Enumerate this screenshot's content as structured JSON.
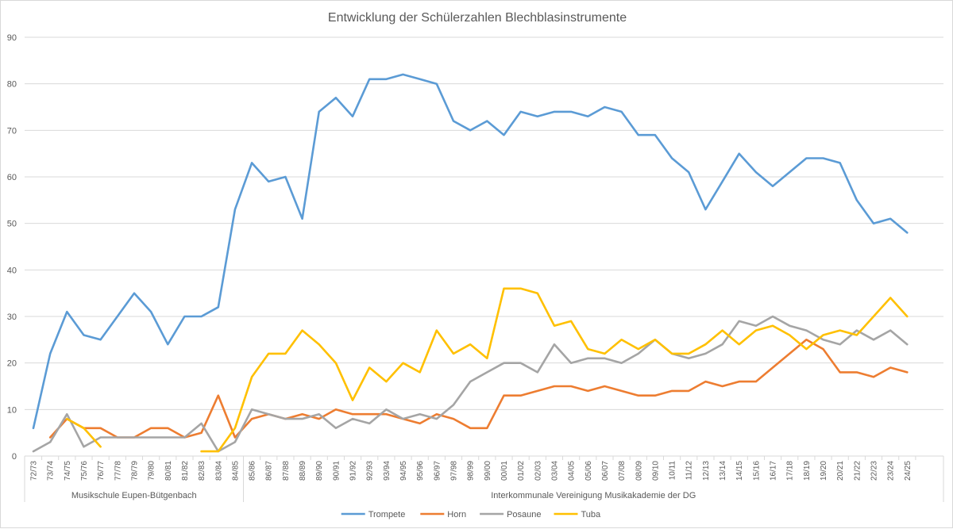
{
  "chart_data": {
    "type": "line",
    "title": "Entwicklung der Schülerzahlen Blechblasinstrumente",
    "ylim": [
      0,
      90
    ],
    "yticks": [
      0,
      10,
      20,
      30,
      40,
      50,
      60,
      70,
      80,
      90
    ],
    "grid": true,
    "legend_position": "bottom",
    "categories": [
      "72/73",
      "73/74",
      "74/75",
      "75/76",
      "76/77",
      "77/78",
      "78/79",
      "79/80",
      "80/81",
      "81/82",
      "82/83",
      "83/84",
      "84/85",
      "85/86",
      "86/87",
      "87/88",
      "88/89",
      "89/90",
      "90/91",
      "91/92",
      "92/93",
      "93/94",
      "94/95",
      "95/96",
      "96/97",
      "97/98",
      "98/99",
      "99/00",
      "00/01",
      "01/02",
      "02/03",
      "03/04",
      "04/05",
      "05/06",
      "06/07",
      "07/08",
      "08/09",
      "09/10",
      "10/11",
      "11/12",
      "12/13",
      "13/14",
      "14/15",
      "15/16",
      "16/17",
      "17/18",
      "18/19",
      "19/20",
      "20/21",
      "21/22",
      "22/23",
      "23/24",
      "24/25"
    ],
    "category_groups": [
      {
        "label": "Musikschule Eupen-Bütgenbach",
        "start": 0,
        "end": 12
      },
      {
        "label": "Interkommunale Vereinigung Musikakademie der DG",
        "start": 13,
        "end": 52
      }
    ],
    "series": [
      {
        "name": "Trompete",
        "color": "#5b9bd5",
        "values": [
          6,
          22,
          31,
          26,
          25,
          30,
          35,
          31,
          24,
          30,
          30,
          32,
          53,
          63,
          59,
          60,
          51,
          74,
          77,
          73,
          81,
          81,
          82,
          81,
          80,
          72,
          70,
          72,
          69,
          74,
          73,
          74,
          74,
          73,
          75,
          74,
          69,
          69,
          64,
          61,
          53,
          59,
          65,
          61,
          58,
          61,
          64,
          64,
          63,
          55,
          50,
          51,
          48
        ]
      },
      {
        "name": "Horn",
        "color": "#ed7d31",
        "values": [
          null,
          4,
          8,
          6,
          6,
          4,
          4,
          6,
          6,
          4,
          5,
          13,
          4,
          8,
          9,
          8,
          9,
          8,
          10,
          9,
          9,
          9,
          8,
          7,
          9,
          8,
          6,
          6,
          13,
          13,
          14,
          15,
          15,
          14,
          15,
          14,
          13,
          13,
          14,
          14,
          16,
          15,
          16,
          16,
          19,
          22,
          25,
          23,
          18,
          18,
          17,
          19,
          18
        ]
      },
      {
        "name": "Posaune",
        "color": "#a5a5a5",
        "values": [
          1,
          3,
          9,
          2,
          4,
          4,
          4,
          4,
          4,
          4,
          7,
          1,
          3,
          10,
          9,
          8,
          8,
          9,
          6,
          8,
          7,
          10,
          8,
          9,
          8,
          11,
          16,
          18,
          20,
          20,
          18,
          24,
          20,
          21,
          21,
          20,
          22,
          25,
          22,
          21,
          22,
          24,
          29,
          28,
          30,
          28,
          27,
          25,
          24,
          27,
          25,
          27,
          24
        ]
      },
      {
        "name": "Tuba",
        "color": "#ffc000",
        "values": [
          null,
          null,
          8,
          6,
          2,
          null,
          null,
          null,
          null,
          null,
          1,
          1,
          6,
          17,
          22,
          22,
          27,
          24,
          20,
          12,
          19,
          16,
          20,
          18,
          27,
          22,
          24,
          21,
          36,
          36,
          35,
          28,
          29,
          23,
          22,
          25,
          23,
          25,
          22,
          22,
          24,
          27,
          24,
          27,
          28,
          26,
          23,
          26,
          27,
          26,
          30,
          34,
          30
        ]
      }
    ]
  }
}
